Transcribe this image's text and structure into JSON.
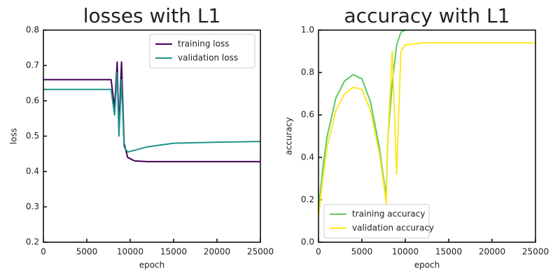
{
  "chart_data": [
    {
      "type": "line",
      "title": "losses with L1",
      "xlabel": "epoch",
      "ylabel": "loss",
      "x": [
        0,
        2000,
        4000,
        6000,
        7800,
        8200,
        8500,
        8700,
        9000,
        9300,
        9700,
        10500,
        12000,
        15000,
        20000,
        25000
      ],
      "series": [
        {
          "name": "training loss",
          "color": "#440154",
          "values": [
            0.66,
            0.66,
            0.66,
            0.66,
            0.66,
            0.58,
            0.71,
            0.52,
            0.71,
            0.48,
            0.44,
            0.43,
            0.428,
            0.428,
            0.428,
            0.428
          ]
        },
        {
          "name": "validation loss",
          "color": "#21918c",
          "values": [
            0.632,
            0.632,
            0.632,
            0.632,
            0.632,
            0.56,
            0.68,
            0.5,
            0.66,
            0.47,
            0.455,
            0.46,
            0.47,
            0.48,
            0.483,
            0.485
          ]
        }
      ],
      "xlim": [
        0,
        25000
      ],
      "xticks": [
        0,
        5000,
        10000,
        15000,
        20000,
        25000
      ],
      "ylim": [
        0.2,
        0.8
      ],
      "yticks": [
        0.2,
        0.3,
        0.4,
        0.5,
        0.6,
        0.7,
        0.8
      ],
      "legend": "upper right"
    },
    {
      "type": "line",
      "title": "accuracy with L1",
      "xlabel": "epoch",
      "ylabel": "accuracy",
      "x": [
        0,
        500,
        1000,
        2000,
        3000,
        4000,
        5000,
        6000,
        7000,
        7500,
        7800,
        8000,
        8500,
        9000,
        9500,
        10000,
        12000,
        15000,
        20000,
        25000
      ],
      "series": [
        {
          "name": "training accuracy",
          "color": "#5ec962",
          "values": [
            0.15,
            0.35,
            0.5,
            0.68,
            0.76,
            0.79,
            0.77,
            0.66,
            0.45,
            0.3,
            0.22,
            0.5,
            0.75,
            0.93,
            0.99,
            1.0,
            null,
            null,
            null,
            null
          ]
        },
        {
          "name": "validation accuracy",
          "color": "#fde725",
          "values": [
            0.12,
            0.3,
            0.45,
            0.62,
            0.7,
            0.73,
            0.72,
            0.62,
            0.42,
            0.28,
            0.18,
            0.5,
            0.9,
            0.32,
            0.9,
            0.93,
            0.94,
            0.94,
            0.94,
            0.94
          ]
        }
      ],
      "xlim": [
        0,
        25000
      ],
      "xticks": [
        0,
        5000,
        10000,
        15000,
        20000,
        25000
      ],
      "ylim": [
        0,
        1.0
      ],
      "yticks": [
        {
          "value": 0,
          "label": "0.0"
        },
        0.2,
        0.4,
        0.6,
        0.8,
        {
          "value": 1.0,
          "label": "1.0"
        }
      ],
      "legend": "lower left"
    }
  ]
}
